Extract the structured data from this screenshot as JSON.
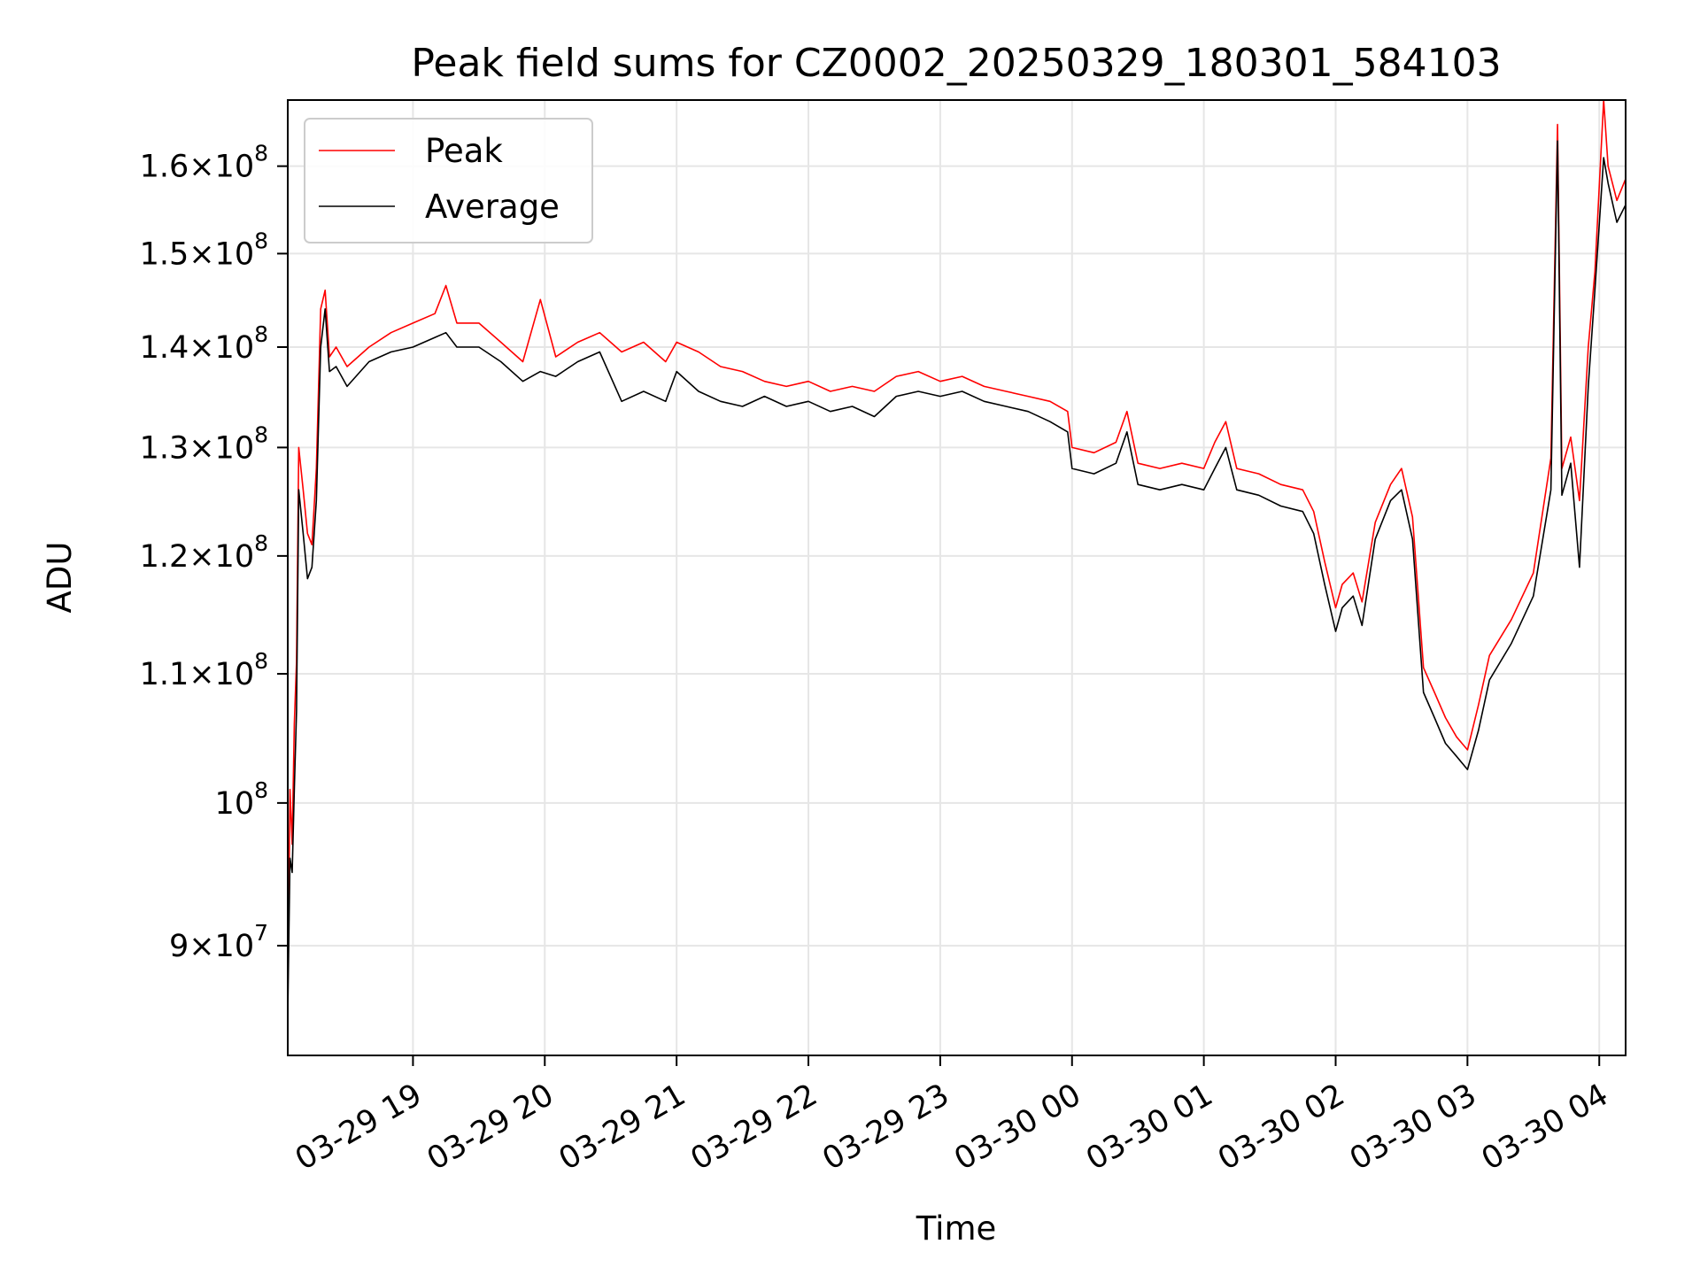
{
  "chart_data": {
    "type": "line",
    "title": "Peak field sums for CZ0002_20250329_180301_584103",
    "xlabel": "Time",
    "ylabel": "ADU",
    "yscale": "log",
    "xlim": [
      "2025-03-29 18:03",
      "2025-03-30 04:12"
    ],
    "ylim": [
      83000000,
      168000000
    ],
    "grid": true,
    "legend_position": "upper-left",
    "x_ticks": [
      {
        "value": "2025-03-29 19:00",
        "label": "03-29 19"
      },
      {
        "value": "2025-03-29 20:00",
        "label": "03-29 20"
      },
      {
        "value": "2025-03-29 21:00",
        "label": "03-29 21"
      },
      {
        "value": "2025-03-29 22:00",
        "label": "03-29 22"
      },
      {
        "value": "2025-03-29 23:00",
        "label": "03-29 23"
      },
      {
        "value": "2025-03-30 00:00",
        "label": "03-30 00"
      },
      {
        "value": "2025-03-30 01:00",
        "label": "03-30 01"
      },
      {
        "value": "2025-03-30 02:00",
        "label": "03-30 02"
      },
      {
        "value": "2025-03-30 03:00",
        "label": "03-30 03"
      },
      {
        "value": "2025-03-30 04:00",
        "label": "03-30 04"
      }
    ],
    "y_ticks": [
      {
        "value": 90000000,
        "mant": "9",
        "exp": "7"
      },
      {
        "value": 100000000,
        "mant": "",
        "exp": "8"
      },
      {
        "value": 110000000,
        "mant": "1.1",
        "exp": "8"
      },
      {
        "value": 120000000,
        "mant": "1.2",
        "exp": "8"
      },
      {
        "value": 130000000,
        "mant": "1.3",
        "exp": "8"
      },
      {
        "value": 140000000,
        "mant": "1.4",
        "exp": "8"
      },
      {
        "value": 150000000,
        "mant": "1.5",
        "exp": "8"
      },
      {
        "value": 160000000,
        "mant": "1.6",
        "exp": "8"
      }
    ],
    "series": [
      {
        "name": "Peak",
        "color": "#ff0000",
        "points": [
          [
            "2025-03-29 18:03",
            86500000
          ],
          [
            "2025-03-29 18:04",
            101000000
          ],
          [
            "2025-03-29 18:05",
            97000000
          ],
          [
            "2025-03-29 18:06",
            106000000
          ],
          [
            "2025-03-29 18:07",
            111000000
          ],
          [
            "2025-03-29 18:08",
            130000000
          ],
          [
            "2025-03-29 18:10",
            126000000
          ],
          [
            "2025-03-29 18:12",
            122000000
          ],
          [
            "2025-03-29 18:14",
            121000000
          ],
          [
            "2025-03-29 18:16",
            128000000
          ],
          [
            "2025-03-29 18:18",
            144000000
          ],
          [
            "2025-03-29 18:20",
            146000000
          ],
          [
            "2025-03-29 18:22",
            139000000
          ],
          [
            "2025-03-29 18:25",
            140000000
          ],
          [
            "2025-03-29 18:30",
            138000000
          ],
          [
            "2025-03-29 18:40",
            140000000
          ],
          [
            "2025-03-29 18:50",
            141500000
          ],
          [
            "2025-03-29 19:00",
            142500000
          ],
          [
            "2025-03-29 19:10",
            143500000
          ],
          [
            "2025-03-29 19:15",
            146500000
          ],
          [
            "2025-03-29 19:20",
            142500000
          ],
          [
            "2025-03-29 19:30",
            142500000
          ],
          [
            "2025-03-29 19:40",
            140500000
          ],
          [
            "2025-03-29 19:50",
            138500000
          ],
          [
            "2025-03-29 19:58",
            145000000
          ],
          [
            "2025-03-29 20:05",
            139000000
          ],
          [
            "2025-03-29 20:15",
            140500000
          ],
          [
            "2025-03-29 20:25",
            141500000
          ],
          [
            "2025-03-29 20:35",
            139500000
          ],
          [
            "2025-03-29 20:45",
            140500000
          ],
          [
            "2025-03-29 20:55",
            138500000
          ],
          [
            "2025-03-29 21:00",
            140500000
          ],
          [
            "2025-03-29 21:10",
            139500000
          ],
          [
            "2025-03-29 21:20",
            138000000
          ],
          [
            "2025-03-29 21:30",
            137500000
          ],
          [
            "2025-03-29 21:40",
            136500000
          ],
          [
            "2025-03-29 21:50",
            136000000
          ],
          [
            "2025-03-29 22:00",
            136500000
          ],
          [
            "2025-03-29 22:10",
            135500000
          ],
          [
            "2025-03-29 22:20",
            136000000
          ],
          [
            "2025-03-29 22:30",
            135500000
          ],
          [
            "2025-03-29 22:40",
            137000000
          ],
          [
            "2025-03-29 22:50",
            137500000
          ],
          [
            "2025-03-29 23:00",
            136500000
          ],
          [
            "2025-03-29 23:10",
            137000000
          ],
          [
            "2025-03-29 23:20",
            136000000
          ],
          [
            "2025-03-29 23:30",
            135500000
          ],
          [
            "2025-03-29 23:40",
            135000000
          ],
          [
            "2025-03-29 23:50",
            134500000
          ],
          [
            "2025-03-29 23:58",
            133500000
          ],
          [
            "2025-03-30 00:00",
            130000000
          ],
          [
            "2025-03-30 00:10",
            129500000
          ],
          [
            "2025-03-30 00:20",
            130500000
          ],
          [
            "2025-03-30 00:25",
            133500000
          ],
          [
            "2025-03-30 00:30",
            128500000
          ],
          [
            "2025-03-30 00:40",
            128000000
          ],
          [
            "2025-03-30 00:50",
            128500000
          ],
          [
            "2025-03-30 01:00",
            128000000
          ],
          [
            "2025-03-30 01:05",
            130500000
          ],
          [
            "2025-03-30 01:10",
            132500000
          ],
          [
            "2025-03-30 01:15",
            128000000
          ],
          [
            "2025-03-30 01:25",
            127500000
          ],
          [
            "2025-03-30 01:35",
            126500000
          ],
          [
            "2025-03-30 01:45",
            126000000
          ],
          [
            "2025-03-30 01:50",
            124000000
          ],
          [
            "2025-03-30 01:55",
            119500000
          ],
          [
            "2025-03-30 02:00",
            115500000
          ],
          [
            "2025-03-30 02:03",
            117500000
          ],
          [
            "2025-03-30 02:08",
            118500000
          ],
          [
            "2025-03-30 02:12",
            116000000
          ],
          [
            "2025-03-30 02:18",
            123000000
          ],
          [
            "2025-03-30 02:25",
            126500000
          ],
          [
            "2025-03-30 02:30",
            128000000
          ],
          [
            "2025-03-30 02:35",
            123500000
          ],
          [
            "2025-03-30 02:40",
            110500000
          ],
          [
            "2025-03-30 02:45",
            108500000
          ],
          [
            "2025-03-30 02:50",
            106500000
          ],
          [
            "2025-03-30 02:55",
            105000000
          ],
          [
            "2025-03-30 03:00",
            104000000
          ],
          [
            "2025-03-30 03:05",
            107500000
          ],
          [
            "2025-03-30 03:10",
            111500000
          ],
          [
            "2025-03-30 03:20",
            114500000
          ],
          [
            "2025-03-30 03:30",
            118500000
          ],
          [
            "2025-03-30 03:38",
            129000000
          ],
          [
            "2025-03-30 03:41",
            165000000
          ],
          [
            "2025-03-30 03:43",
            128000000
          ],
          [
            "2025-03-30 03:47",
            131000000
          ],
          [
            "2025-03-30 03:51",
            125000000
          ],
          [
            "2025-03-30 03:55",
            140000000
          ],
          [
            "2025-03-30 03:58",
            148000000
          ],
          [
            "2025-03-30 04:02",
            168000000
          ],
          [
            "2025-03-30 04:04",
            160000000
          ],
          [
            "2025-03-30 04:08",
            156000000
          ],
          [
            "2025-03-30 04:12",
            158500000
          ]
        ]
      },
      {
        "name": "Average",
        "color": "#000000",
        "points": [
          [
            "2025-03-29 18:03",
            85500000
          ],
          [
            "2025-03-29 18:04",
            96000000
          ],
          [
            "2025-03-29 18:05",
            95000000
          ],
          [
            "2025-03-29 18:06",
            101000000
          ],
          [
            "2025-03-29 18:07",
            107000000
          ],
          [
            "2025-03-29 18:08",
            126000000
          ],
          [
            "2025-03-29 18:10",
            122000000
          ],
          [
            "2025-03-29 18:12",
            118000000
          ],
          [
            "2025-03-29 18:14",
            119000000
          ],
          [
            "2025-03-29 18:16",
            125000000
          ],
          [
            "2025-03-29 18:18",
            140000000
          ],
          [
            "2025-03-29 18:20",
            144000000
          ],
          [
            "2025-03-29 18:22",
            137500000
          ],
          [
            "2025-03-29 18:25",
            138000000
          ],
          [
            "2025-03-29 18:30",
            136000000
          ],
          [
            "2025-03-29 18:40",
            138500000
          ],
          [
            "2025-03-29 18:50",
            139500000
          ],
          [
            "2025-03-29 19:00",
            140000000
          ],
          [
            "2025-03-29 19:10",
            141000000
          ],
          [
            "2025-03-29 19:15",
            141500000
          ],
          [
            "2025-03-29 19:20",
            140000000
          ],
          [
            "2025-03-29 19:30",
            140000000
          ],
          [
            "2025-03-29 19:40",
            138500000
          ],
          [
            "2025-03-29 19:50",
            136500000
          ],
          [
            "2025-03-29 19:58",
            137500000
          ],
          [
            "2025-03-29 20:05",
            137000000
          ],
          [
            "2025-03-29 20:15",
            138500000
          ],
          [
            "2025-03-29 20:25",
            139500000
          ],
          [
            "2025-03-29 20:35",
            134500000
          ],
          [
            "2025-03-29 20:45",
            135500000
          ],
          [
            "2025-03-29 20:55",
            134500000
          ],
          [
            "2025-03-29 21:00",
            137500000
          ],
          [
            "2025-03-29 21:10",
            135500000
          ],
          [
            "2025-03-29 21:20",
            134500000
          ],
          [
            "2025-03-29 21:30",
            134000000
          ],
          [
            "2025-03-29 21:40",
            135000000
          ],
          [
            "2025-03-29 21:50",
            134000000
          ],
          [
            "2025-03-29 22:00",
            134500000
          ],
          [
            "2025-03-29 22:10",
            133500000
          ],
          [
            "2025-03-29 22:20",
            134000000
          ],
          [
            "2025-03-29 22:30",
            133000000
          ],
          [
            "2025-03-29 22:40",
            135000000
          ],
          [
            "2025-03-29 22:50",
            135500000
          ],
          [
            "2025-03-29 23:00",
            135000000
          ],
          [
            "2025-03-29 23:10",
            135500000
          ],
          [
            "2025-03-29 23:20",
            134500000
          ],
          [
            "2025-03-29 23:30",
            134000000
          ],
          [
            "2025-03-29 23:40",
            133500000
          ],
          [
            "2025-03-29 23:50",
            132500000
          ],
          [
            "2025-03-29 23:58",
            131500000
          ],
          [
            "2025-03-30 00:00",
            128000000
          ],
          [
            "2025-03-30 00:10",
            127500000
          ],
          [
            "2025-03-30 00:20",
            128500000
          ],
          [
            "2025-03-30 00:25",
            131500000
          ],
          [
            "2025-03-30 00:30",
            126500000
          ],
          [
            "2025-03-30 00:40",
            126000000
          ],
          [
            "2025-03-30 00:50",
            126500000
          ],
          [
            "2025-03-30 01:00",
            126000000
          ],
          [
            "2025-03-30 01:05",
            128000000
          ],
          [
            "2025-03-30 01:10",
            130000000
          ],
          [
            "2025-03-30 01:15",
            126000000
          ],
          [
            "2025-03-30 01:25",
            125500000
          ],
          [
            "2025-03-30 01:35",
            124500000
          ],
          [
            "2025-03-30 01:45",
            124000000
          ],
          [
            "2025-03-30 01:50",
            122000000
          ],
          [
            "2025-03-30 01:55",
            117500000
          ],
          [
            "2025-03-30 02:00",
            113500000
          ],
          [
            "2025-03-30 02:03",
            115500000
          ],
          [
            "2025-03-30 02:08",
            116500000
          ],
          [
            "2025-03-30 02:12",
            114000000
          ],
          [
            "2025-03-30 02:18",
            121500000
          ],
          [
            "2025-03-30 02:25",
            125000000
          ],
          [
            "2025-03-30 02:30",
            126000000
          ],
          [
            "2025-03-30 02:35",
            121500000
          ],
          [
            "2025-03-30 02:40",
            108500000
          ],
          [
            "2025-03-30 02:45",
            106500000
          ],
          [
            "2025-03-30 02:50",
            104500000
          ],
          [
            "2025-03-30 02:55",
            103500000
          ],
          [
            "2025-03-30 03:00",
            102500000
          ],
          [
            "2025-03-30 03:05",
            105500000
          ],
          [
            "2025-03-30 03:10",
            109500000
          ],
          [
            "2025-03-30 03:20",
            112500000
          ],
          [
            "2025-03-30 03:30",
            116500000
          ],
          [
            "2025-03-30 03:38",
            126000000
          ],
          [
            "2025-03-30 03:41",
            163000000
          ],
          [
            "2025-03-30 03:43",
            125500000
          ],
          [
            "2025-03-30 03:47",
            128500000
          ],
          [
            "2025-03-30 03:51",
            119000000
          ],
          [
            "2025-03-30 03:55",
            136000000
          ],
          [
            "2025-03-30 03:58",
            146000000
          ],
          [
            "2025-03-30 04:02",
            161000000
          ],
          [
            "2025-03-30 04:04",
            158000000
          ],
          [
            "2025-03-30 04:08",
            153500000
          ],
          [
            "2025-03-30 04:12",
            155500000
          ]
        ]
      }
    ]
  }
}
